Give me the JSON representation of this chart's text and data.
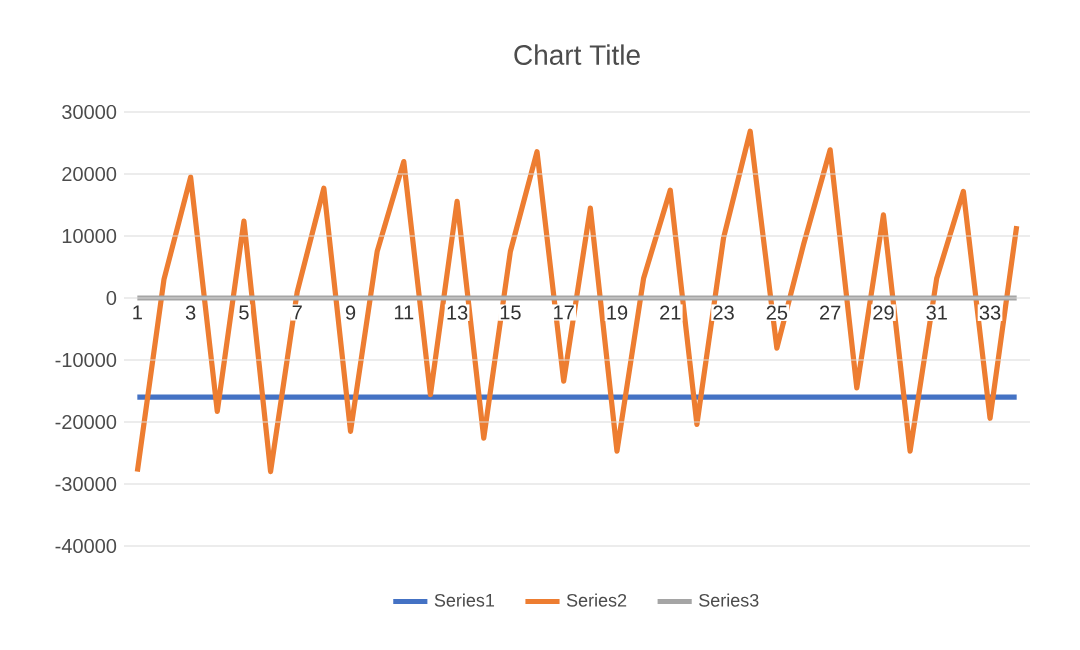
{
  "chart_data": {
    "type": "line",
    "title": "Chart Title",
    "categories": [
      "1",
      null,
      "3",
      null,
      "5",
      null,
      "7",
      null,
      "9",
      null,
      "11",
      null,
      "13",
      null,
      "15",
      null,
      "17",
      null,
      "19",
      null,
      "21",
      null,
      "23",
      null,
      "25",
      null,
      "27",
      null,
      "29",
      null,
      "31",
      null,
      "33",
      null
    ],
    "series": [
      {
        "name": "Series1",
        "color": "#4472c4",
        "values": [
          -16000,
          -16000,
          -16000,
          -16000,
          -16000,
          -16000,
          -16000,
          -16000,
          -16000,
          -16000,
          -16000,
          -16000,
          -16000,
          -16000,
          -16000,
          -16000,
          -16000,
          -16000,
          -16000,
          -16000,
          -16000,
          -16000,
          -16000,
          -16000,
          -16000,
          -16000,
          -16000,
          -16000,
          -16000,
          -16000,
          -16000,
          -16000,
          -16000,
          -16000
        ]
      },
      {
        "name": "Series2",
        "color": "#ed7d31",
        "values": [
          -28000,
          3000,
          19500,
          -18300,
          12400,
          -28000,
          1000,
          17700,
          -21500,
          7500,
          22000,
          -15600,
          15600,
          -22600,
          7500,
          23600,
          -13400,
          14500,
          -24700,
          3200,
          17400,
          -20400,
          9700,
          26900,
          -8100,
          8600,
          23900,
          -14500,
          13400,
          -24700,
          3200,
          17200,
          -19400,
          11600
        ]
      },
      {
        "name": "Series3",
        "color": "#a5a5a5",
        "values": [
          0,
          0,
          0,
          0,
          0,
          0,
          0,
          0,
          0,
          0,
          0,
          0,
          0,
          0,
          0,
          0,
          0,
          0,
          0,
          0,
          0,
          0,
          0,
          0,
          0,
          0,
          0,
          0,
          0,
          0,
          0,
          0,
          0,
          0
        ]
      }
    ],
    "ylim": [
      -40000,
      30000
    ],
    "yticks": [
      -40000,
      -30000,
      -20000,
      -10000,
      0,
      10000,
      20000,
      30000
    ],
    "grid": "y",
    "legend": "bottom",
    "marker": "none",
    "line_style": "solid"
  }
}
